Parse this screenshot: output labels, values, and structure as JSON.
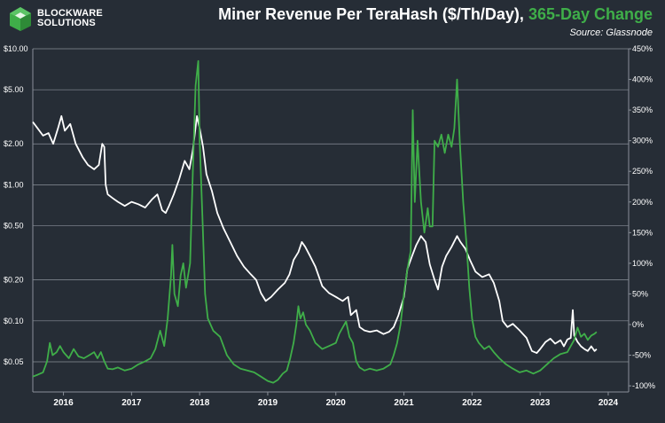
{
  "header": {
    "brand_line1": "BLOCKWARE",
    "brand_line2": "SOLUTIONS",
    "title_main": "Miner Revenue Per TeraHash ($/Th/Day),",
    "title_accent": "365-Day Change",
    "source": "Source: Glassnode"
  },
  "colors": {
    "background": "#262d36",
    "revenue_line": "#ffffff",
    "change_line": "#3fae49",
    "grid": "#8a9099"
  },
  "chart_data": {
    "type": "line",
    "title": "Miner Revenue Per TeraHash ($/Th/Day), 365-Day Change",
    "source": "Glassnode",
    "x_range": [
      2015.55,
      2024.3
    ],
    "x_ticks": [
      2016,
      2017,
      2018,
      2019,
      2020,
      2021,
      2022,
      2023,
      2024
    ],
    "x_tick_labels": [
      "2016",
      "2017",
      "2018",
      "2019",
      "2020",
      "2021",
      "2022",
      "2023",
      "2024"
    ],
    "y_left": {
      "scale": "log",
      "range": [
        0.03,
        10.0
      ],
      "ticks": [
        10.0,
        5.0,
        2.0,
        1.0,
        0.5,
        0.2,
        0.1,
        0.05
      ],
      "tick_labels": [
        "$10.00",
        "$5.00",
        "$2.00",
        "$1.00",
        "$0.50",
        "$0.20",
        "$0.10",
        "$0.05"
      ]
    },
    "y_right": {
      "scale": "linear",
      "range": [
        -110,
        450
      ],
      "ticks": [
        450,
        400,
        350,
        300,
        250,
        200,
        150,
        100,
        50,
        0,
        -50,
        -100
      ],
      "tick_labels": [
        "450%",
        "400%",
        "350%",
        "300%",
        "250%",
        "200%",
        "150%",
        "100%",
        "50%",
        "0%",
        "-50%",
        "-100%"
      ]
    },
    "grid": "horizontal",
    "series": [
      {
        "name": "Miner Revenue Per TeraHash ($/Th/Day)",
        "axis": "left",
        "points": [
          [
            2015.55,
            2.9
          ],
          [
            2015.62,
            2.6
          ],
          [
            2015.7,
            2.3
          ],
          [
            2015.78,
            2.4
          ],
          [
            2015.85,
            2.0
          ],
          [
            2015.92,
            2.6
          ],
          [
            2015.97,
            3.2
          ],
          [
            2016.02,
            2.5
          ],
          [
            2016.1,
            2.8
          ],
          [
            2016.18,
            2.0
          ],
          [
            2016.28,
            1.6
          ],
          [
            2016.36,
            1.4
          ],
          [
            2016.45,
            1.3
          ],
          [
            2016.52,
            1.4
          ],
          [
            2016.57,
            2.0
          ],
          [
            2016.6,
            1.9
          ],
          [
            2016.62,
            1.0
          ],
          [
            2016.65,
            0.85
          ],
          [
            2016.72,
            0.8
          ],
          [
            2016.8,
            0.75
          ],
          [
            2016.9,
            0.7
          ],
          [
            2017.0,
            0.75
          ],
          [
            2017.1,
            0.72
          ],
          [
            2017.2,
            0.68
          ],
          [
            2017.3,
            0.78
          ],
          [
            2017.38,
            0.85
          ],
          [
            2017.45,
            0.65
          ],
          [
            2017.5,
            0.62
          ],
          [
            2017.55,
            0.7
          ],
          [
            2017.62,
            0.85
          ],
          [
            2017.7,
            1.1
          ],
          [
            2017.78,
            1.5
          ],
          [
            2017.85,
            1.3
          ],
          [
            2017.9,
            1.8
          ],
          [
            2017.96,
            3.2
          ],
          [
            2018.0,
            2.6
          ],
          [
            2018.05,
            1.9
          ],
          [
            2018.1,
            1.2
          ],
          [
            2018.18,
            0.9
          ],
          [
            2018.26,
            0.62
          ],
          [
            2018.35,
            0.48
          ],
          [
            2018.45,
            0.38
          ],
          [
            2018.55,
            0.3
          ],
          [
            2018.65,
            0.25
          ],
          [
            2018.75,
            0.22
          ],
          [
            2018.83,
            0.2
          ],
          [
            2018.9,
            0.16
          ],
          [
            2018.97,
            0.14
          ],
          [
            2019.05,
            0.15
          ],
          [
            2019.15,
            0.17
          ],
          [
            2019.25,
            0.19
          ],
          [
            2019.32,
            0.22
          ],
          [
            2019.38,
            0.28
          ],
          [
            2019.45,
            0.32
          ],
          [
            2019.5,
            0.38
          ],
          [
            2019.55,
            0.35
          ],
          [
            2019.62,
            0.3
          ],
          [
            2019.7,
            0.25
          ],
          [
            2019.8,
            0.18
          ],
          [
            2019.9,
            0.16
          ],
          [
            2020.0,
            0.15
          ],
          [
            2020.1,
            0.14
          ],
          [
            2020.18,
            0.15
          ],
          [
            2020.22,
            0.11
          ],
          [
            2020.3,
            0.12
          ],
          [
            2020.35,
            0.09
          ],
          [
            2020.42,
            0.085
          ],
          [
            2020.5,
            0.083
          ],
          [
            2020.6,
            0.085
          ],
          [
            2020.7,
            0.08
          ],
          [
            2020.78,
            0.083
          ],
          [
            2020.85,
            0.09
          ],
          [
            2020.92,
            0.11
          ],
          [
            2021.0,
            0.15
          ],
          [
            2021.05,
            0.24
          ],
          [
            2021.12,
            0.3
          ],
          [
            2021.18,
            0.36
          ],
          [
            2021.25,
            0.42
          ],
          [
            2021.32,
            0.38
          ],
          [
            2021.38,
            0.26
          ],
          [
            2021.45,
            0.2
          ],
          [
            2021.5,
            0.17
          ],
          [
            2021.56,
            0.25
          ],
          [
            2021.62,
            0.3
          ],
          [
            2021.7,
            0.35
          ],
          [
            2021.78,
            0.42
          ],
          [
            2021.83,
            0.38
          ],
          [
            2021.9,
            0.34
          ],
          [
            2021.97,
            0.28
          ],
          [
            2022.05,
            0.23
          ],
          [
            2022.15,
            0.21
          ],
          [
            2022.25,
            0.22
          ],
          [
            2022.32,
            0.19
          ],
          [
            2022.4,
            0.14
          ],
          [
            2022.45,
            0.1
          ],
          [
            2022.52,
            0.09
          ],
          [
            2022.6,
            0.095
          ],
          [
            2022.7,
            0.085
          ],
          [
            2022.8,
            0.075
          ],
          [
            2022.88,
            0.06
          ],
          [
            2022.95,
            0.058
          ],
          [
            2023.0,
            0.062
          ],
          [
            2023.08,
            0.07
          ],
          [
            2023.15,
            0.074
          ],
          [
            2023.22,
            0.068
          ],
          [
            2023.3,
            0.072
          ],
          [
            2023.35,
            0.065
          ],
          [
            2023.4,
            0.073
          ],
          [
            2023.45,
            0.075
          ],
          [
            2023.48,
            0.12
          ],
          [
            2023.5,
            0.078
          ],
          [
            2023.55,
            0.07
          ],
          [
            2023.6,
            0.065
          ],
          [
            2023.65,
            0.062
          ],
          [
            2023.7,
            0.06
          ],
          [
            2023.75,
            0.065
          ],
          [
            2023.8,
            0.06
          ],
          [
            2023.83,
            0.062
          ]
        ]
      },
      {
        "name": "365-Day Change",
        "axis": "right",
        "points": [
          [
            2015.55,
            -85
          ],
          [
            2015.62,
            -82
          ],
          [
            2015.7,
            -78
          ],
          [
            2015.76,
            -60
          ],
          [
            2015.8,
            -30
          ],
          [
            2015.84,
            -50
          ],
          [
            2015.9,
            -45
          ],
          [
            2015.95,
            -35
          ],
          [
            2016.0,
            -45
          ],
          [
            2016.08,
            -55
          ],
          [
            2016.15,
            -40
          ],
          [
            2016.22,
            -52
          ],
          [
            2016.3,
            -55
          ],
          [
            2016.38,
            -50
          ],
          [
            2016.45,
            -45
          ],
          [
            2016.5,
            -55
          ],
          [
            2016.55,
            -45
          ],
          [
            2016.6,
            -60
          ],
          [
            2016.65,
            -72
          ],
          [
            2016.72,
            -73
          ],
          [
            2016.8,
            -70
          ],
          [
            2016.9,
            -75
          ],
          [
            2017.0,
            -72
          ],
          [
            2017.1,
            -65
          ],
          [
            2017.2,
            -60
          ],
          [
            2017.28,
            -55
          ],
          [
            2017.35,
            -40
          ],
          [
            2017.42,
            -10
          ],
          [
            2017.48,
            -35
          ],
          [
            2017.53,
            10
          ],
          [
            2017.58,
            80
          ],
          [
            2017.6,
            130
          ],
          [
            2017.63,
            50
          ],
          [
            2017.68,
            30
          ],
          [
            2017.72,
            80
          ],
          [
            2017.76,
            100
          ],
          [
            2017.8,
            60
          ],
          [
            2017.86,
            100
          ],
          [
            2017.9,
            250
          ],
          [
            2017.94,
            390
          ],
          [
            2017.98,
            430
          ],
          [
            2018.0,
            300
          ],
          [
            2018.04,
            180
          ],
          [
            2018.08,
            50
          ],
          [
            2018.12,
            10
          ],
          [
            2018.2,
            -10
          ],
          [
            2018.3,
            -20
          ],
          [
            2018.4,
            -50
          ],
          [
            2018.5,
            -65
          ],
          [
            2018.6,
            -72
          ],
          [
            2018.7,
            -75
          ],
          [
            2018.8,
            -78
          ],
          [
            2018.9,
            -85
          ],
          [
            2019.0,
            -92
          ],
          [
            2019.08,
            -95
          ],
          [
            2019.15,
            -90
          ],
          [
            2019.22,
            -80
          ],
          [
            2019.28,
            -75
          ],
          [
            2019.33,
            -55
          ],
          [
            2019.38,
            -30
          ],
          [
            2019.42,
            0
          ],
          [
            2019.45,
            30
          ],
          [
            2019.48,
            10
          ],
          [
            2019.52,
            20
          ],
          [
            2019.56,
            0
          ],
          [
            2019.62,
            -10
          ],
          [
            2019.7,
            -30
          ],
          [
            2019.8,
            -40
          ],
          [
            2019.9,
            -35
          ],
          [
            2020.0,
            -30
          ],
          [
            2020.05,
            -15
          ],
          [
            2020.1,
            -5
          ],
          [
            2020.15,
            5
          ],
          [
            2020.2,
            -20
          ],
          [
            2020.25,
            -30
          ],
          [
            2020.3,
            -60
          ],
          [
            2020.35,
            -70
          ],
          [
            2020.42,
            -75
          ],
          [
            2020.5,
            -72
          ],
          [
            2020.6,
            -75
          ],
          [
            2020.7,
            -72
          ],
          [
            2020.8,
            -65
          ],
          [
            2020.85,
            -50
          ],
          [
            2020.9,
            -30
          ],
          [
            2020.95,
            0
          ],
          [
            2021.0,
            50
          ],
          [
            2021.05,
            90
          ],
          [
            2021.1,
            120
          ],
          [
            2021.13,
            350
          ],
          [
            2021.16,
            200
          ],
          [
            2021.2,
            300
          ],
          [
            2021.25,
            200
          ],
          [
            2021.3,
            150
          ],
          [
            2021.35,
            190
          ],
          [
            2021.38,
            160
          ],
          [
            2021.42,
            160
          ],
          [
            2021.45,
            300
          ],
          [
            2021.5,
            290
          ],
          [
            2021.55,
            310
          ],
          [
            2021.6,
            280
          ],
          [
            2021.65,
            310
          ],
          [
            2021.7,
            290
          ],
          [
            2021.74,
            320
          ],
          [
            2021.78,
            400
          ],
          [
            2021.82,
            300
          ],
          [
            2021.87,
            200
          ],
          [
            2021.92,
            130
          ],
          [
            2021.96,
            60
          ],
          [
            2022.0,
            10
          ],
          [
            2022.05,
            -20
          ],
          [
            2022.1,
            -30
          ],
          [
            2022.18,
            -40
          ],
          [
            2022.25,
            -35
          ],
          [
            2022.32,
            -45
          ],
          [
            2022.4,
            -55
          ],
          [
            2022.5,
            -65
          ],
          [
            2022.6,
            -72
          ],
          [
            2022.7,
            -78
          ],
          [
            2022.8,
            -75
          ],
          [
            2022.9,
            -80
          ],
          [
            2023.0,
            -75
          ],
          [
            2023.1,
            -65
          ],
          [
            2023.2,
            -55
          ],
          [
            2023.3,
            -48
          ],
          [
            2023.4,
            -45
          ],
          [
            2023.5,
            -25
          ],
          [
            2023.55,
            -5
          ],
          [
            2023.6,
            -20
          ],
          [
            2023.65,
            -15
          ],
          [
            2023.7,
            -25
          ],
          [
            2023.75,
            -18
          ],
          [
            2023.8,
            -15
          ],
          [
            2023.83,
            -12
          ]
        ]
      }
    ]
  }
}
